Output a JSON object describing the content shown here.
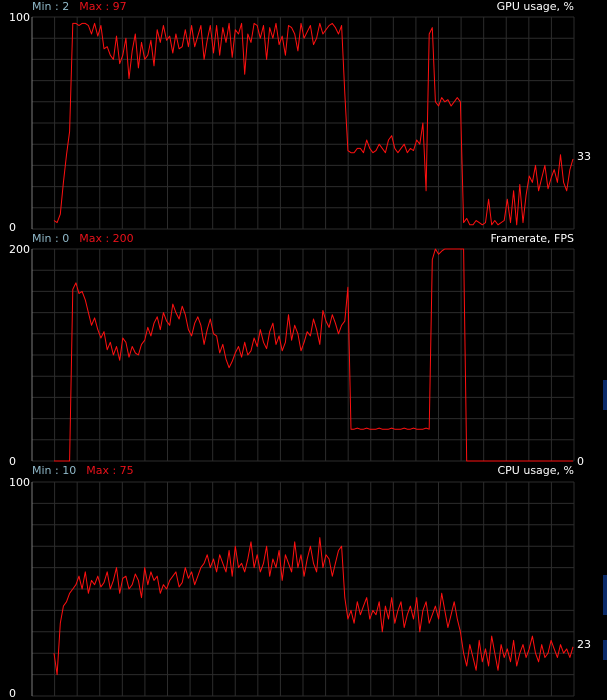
{
  "colors": {
    "line": "#ff1010",
    "grid": "#2c2c2c",
    "frame": "#7a7a7a",
    "background": "#000000"
  },
  "chart_data": [
    {
      "type": "line",
      "title": "GPU usage, %",
      "min_label": "Min : 2",
      "max_label": "Max : 97",
      "ylim": [
        0,
        100
      ],
      "y_tick_labels": [
        "100",
        "0"
      ],
      "current_value": "33",
      "grid": true,
      "series": [
        {
          "values": [
            4,
            3,
            7,
            22,
            35,
            46,
            97,
            97,
            96,
            97,
            97,
            96,
            92,
            97,
            91,
            96,
            85,
            86,
            82,
            80,
            91,
            78,
            82,
            90,
            71,
            84,
            92,
            76,
            88,
            80,
            82,
            89,
            77,
            94,
            88,
            96,
            89,
            91,
            83,
            92,
            85,
            86,
            94,
            86,
            96,
            86,
            91,
            96,
            80,
            89,
            96,
            83,
            96,
            82,
            95,
            88,
            97,
            81,
            94,
            92,
            97,
            73,
            92,
            88,
            97,
            96,
            90,
            96,
            80,
            95,
            90,
            97,
            87,
            91,
            82,
            96,
            95,
            92,
            84,
            97,
            90,
            93,
            96,
            87,
            90,
            97,
            92,
            94,
            96,
            97,
            95,
            92,
            96,
            64,
            37,
            36,
            36,
            38,
            38,
            36,
            42,
            38,
            36,
            37,
            40,
            38,
            36,
            42,
            44,
            38,
            36,
            38,
            40,
            36,
            38,
            37,
            42,
            40,
            50,
            18,
            92,
            95,
            60,
            58,
            62,
            60,
            61,
            58,
            60,
            62,
            60,
            3,
            5,
            2,
            2,
            4,
            3,
            2,
            3,
            14,
            2,
            4,
            2,
            3,
            4,
            14,
            3,
            18,
            2,
            21,
            3,
            16,
            25,
            22,
            30,
            18,
            24,
            30,
            19,
            24,
            28,
            22,
            35,
            22,
            18,
            28,
            33
          ]
        }
      ]
    },
    {
      "type": "line",
      "title": "Framerate, FPS",
      "min_label": "Min : 0",
      "max_label": "Max : 200",
      "ylim": [
        0,
        200
      ],
      "y_tick_labels": [
        "200",
        "0"
      ],
      "current_value": "0",
      "grid": true,
      "series": [
        {
          "values": [
            0,
            0,
            0,
            0,
            0,
            0,
            162,
            168,
            158,
            160,
            152,
            140,
            128,
            135,
            124,
            116,
            122,
            105,
            112,
            100,
            108,
            95,
            116,
            112,
            98,
            108,
            102,
            100,
            110,
            114,
            126,
            118,
            130,
            136,
            124,
            140,
            132,
            128,
            148,
            140,
            134,
            146,
            138,
            124,
            118,
            130,
            136,
            128,
            110,
            124,
            134,
            120,
            118,
            102,
            110,
            96,
            88,
            94,
            102,
            108,
            98,
            112,
            100,
            104,
            116,
            108,
            124,
            112,
            106,
            122,
            130,
            110,
            118,
            104,
            112,
            138,
            114,
            128,
            120,
            104,
            112,
            122,
            118,
            134,
            124,
            110,
            142,
            132,
            126,
            138,
            130,
            120,
            128,
            132,
            164,
            30,
            30,
            31,
            30,
            30,
            31,
            30,
            30,
            30,
            31,
            30,
            30,
            30,
            31,
            30,
            30,
            30,
            31,
            30,
            30,
            31,
            30,
            30,
            30,
            31,
            30,
            190,
            200,
            195,
            198,
            200,
            200,
            200,
            200,
            200,
            200,
            200,
            0,
            0,
            0,
            0,
            0,
            0,
            0,
            0,
            0,
            0,
            0,
            0,
            0,
            0,
            0,
            0,
            0,
            0,
            0,
            0,
            0,
            0,
            0,
            0,
            0,
            0,
            0,
            0,
            0,
            0,
            0,
            0,
            0,
            0,
            0
          ]
        }
      ]
    },
    {
      "type": "line",
      "title": "CPU usage, %",
      "min_label": "Min : 10",
      "max_label": "Max : 75",
      "ylim": [
        0,
        100
      ],
      "y_tick_labels": [
        "100",
        "0"
      ],
      "current_value": "23",
      "grid": true,
      "series": [
        {
          "values": [
            20,
            10,
            34,
            42,
            44,
            48,
            50,
            52,
            56,
            50,
            58,
            48,
            54,
            52,
            56,
            51,
            53,
            58,
            50,
            54,
            60,
            48,
            55,
            56,
            50,
            52,
            57,
            54,
            46,
            60,
            52,
            58,
            54,
            56,
            48,
            52,
            50,
            54,
            56,
            58,
            51,
            53,
            60,
            55,
            58,
            52,
            56,
            60,
            62,
            66,
            60,
            64,
            58,
            66,
            62,
            58,
            68,
            56,
            70,
            60,
            62,
            58,
            64,
            72,
            60,
            66,
            58,
            62,
            70,
            56,
            64,
            60,
            68,
            54,
            66,
            62,
            58,
            72,
            60,
            66,
            56,
            64,
            70,
            62,
            58,
            74,
            60,
            66,
            64,
            56,
            62,
            68,
            70,
            46,
            36,
            40,
            34,
            44,
            38,
            42,
            46,
            36,
            40,
            38,
            44,
            30,
            42,
            36,
            46,
            34,
            40,
            44,
            32,
            38,
            42,
            36,
            46,
            30,
            40,
            44,
            34,
            38,
            42,
            36,
            48,
            40,
            32,
            38,
            44,
            36,
            30,
            20,
            14,
            24,
            18,
            12,
            26,
            16,
            22,
            14,
            28,
            20,
            12,
            24,
            18,
            22,
            16,
            26,
            14,
            20,
            24,
            18,
            22,
            28,
            20,
            16,
            24,
            18,
            20,
            26,
            22,
            18,
            24,
            20,
            22,
            18,
            23
          ]
        }
      ]
    }
  ]
}
